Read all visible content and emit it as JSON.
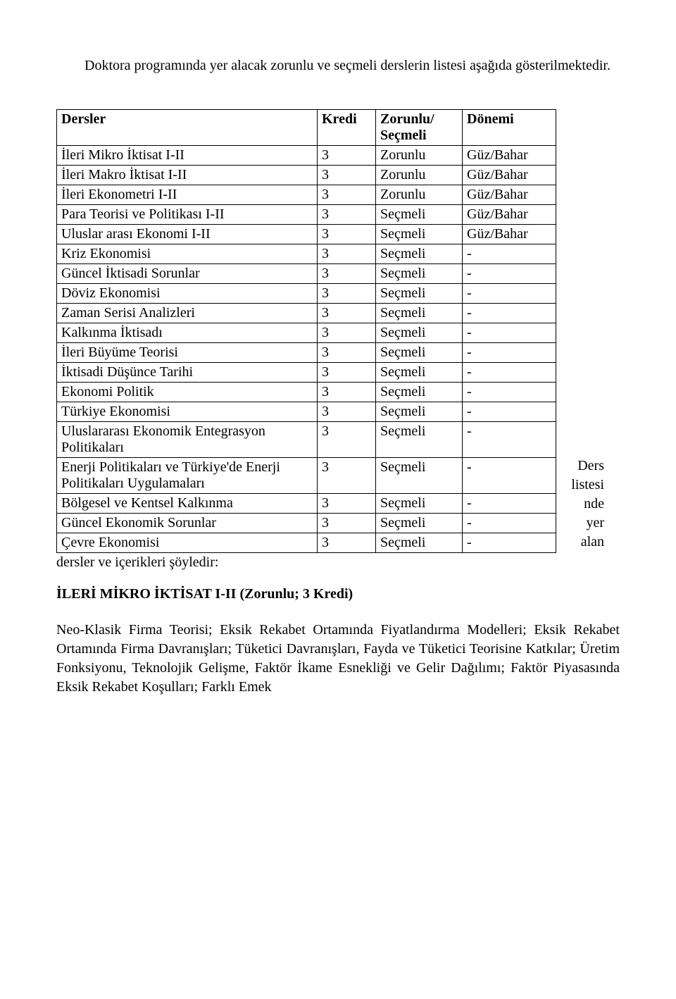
{
  "intro": "Doktora programında yer alacak zorunlu ve seçmeli derslerin listesi aşağıda gösterilmektedir.",
  "table": {
    "headers": {
      "dersler": "Dersler",
      "kredi": "Kredi",
      "zs_line1": "Zorunlu/",
      "zs_line2": "Seçmeli",
      "donem": "Dönemi"
    },
    "rows": [
      {
        "ders": "İleri Mikro İktisat I-II",
        "kredi": "3",
        "zs": "Zorunlu",
        "donem": "Güz/Bahar"
      },
      {
        "ders": "İleri Makro İktisat I-II",
        "kredi": "3",
        "zs": "Zorunlu",
        "donem": "Güz/Bahar"
      },
      {
        "ders": "İleri Ekonometri I-II",
        "kredi": "3",
        "zs": "Zorunlu",
        "donem": "Güz/Bahar"
      },
      {
        "ders": "Para Teorisi ve Politikası I-II",
        "kredi": "3",
        "zs": "Seçmeli",
        "donem": "Güz/Bahar"
      },
      {
        "ders": "Uluslar arası Ekonomi I-II",
        "kredi": "3",
        "zs": "Seçmeli",
        "donem": "Güz/Bahar"
      },
      {
        "ders": "Kriz Ekonomisi",
        "kredi": "3",
        "zs": "Seçmeli",
        "donem": "-"
      },
      {
        "ders": "Güncel İktisadi Sorunlar",
        "kredi": "3",
        "zs": "Seçmeli",
        "donem": "-"
      },
      {
        "ders": "Döviz Ekonomisi",
        "kredi": "3",
        "zs": "Seçmeli",
        "donem": "-"
      },
      {
        "ders": "Zaman Serisi Analizleri",
        "kredi": "3",
        "zs": "Seçmeli",
        "donem": "-"
      },
      {
        "ders": "Kalkınma İktisadı",
        "kredi": "3",
        "zs": "Seçmeli",
        "donem": "-"
      },
      {
        "ders": "İleri Büyüme Teorisi",
        "kredi": "3",
        "zs": "Seçmeli",
        "donem": "-"
      },
      {
        "ders": "İktisadi Düşünce Tarihi",
        "kredi": "3",
        "zs": "Seçmeli",
        "donem": "-"
      },
      {
        "ders": "Ekonomi Politik",
        "kredi": "3",
        "zs": "Seçmeli",
        "donem": "-"
      },
      {
        "ders": "Türkiye Ekonomisi",
        "kredi": "3",
        "zs": "Seçmeli",
        "donem": "-"
      },
      {
        "ders": "Uluslararası Ekonomik Entegrasyon Politikaları",
        "kredi": "3",
        "zs": "Seçmeli",
        "donem": "-"
      },
      {
        "ders": "Enerji Politikaları ve Türkiye'de Enerji Politikaları Uygulamaları",
        "kredi": "3",
        "zs": "Seçmeli",
        "donem": "-"
      },
      {
        "ders": "Bölgesel ve Kentsel Kalkınma",
        "kredi": "3",
        "zs": "Seçmeli",
        "donem": "-"
      },
      {
        "ders": "Güncel Ekonomik Sorunlar",
        "kredi": "3",
        "zs": "Seçmeli",
        "donem": "-"
      },
      {
        "ders": "Çevre Ekonomisi",
        "kredi": "3",
        "zs": "Seçmeli",
        "donem": "-"
      }
    ]
  },
  "side_note": {
    "l1": "Ders",
    "l2": "listesi",
    "l3": "nde",
    "l4": "yer",
    "l5": "alan"
  },
  "after_table": "dersler ve içerikleri şöyledir:",
  "heading": "İLERİ MİKRO İKTİSAT I-II (Zorunlu; 3 Kredi)",
  "body": "Neo-Klasik Firma Teorisi; Eksik Rekabet Ortamında Fiyatlandırma Modelleri; Eksik Rekabet Ortamında Firma Davranışları; Tüketici Davranışları, Fayda ve Tüketici Teorisine Katkılar; Üretim Fonksiyonu, Teknolojik Gelişme, Faktör İkame Esnekliği ve Gelir Dağılımı; Faktör Piyasasında Eksik Rekabet Koşulları; Farklı Emek"
}
